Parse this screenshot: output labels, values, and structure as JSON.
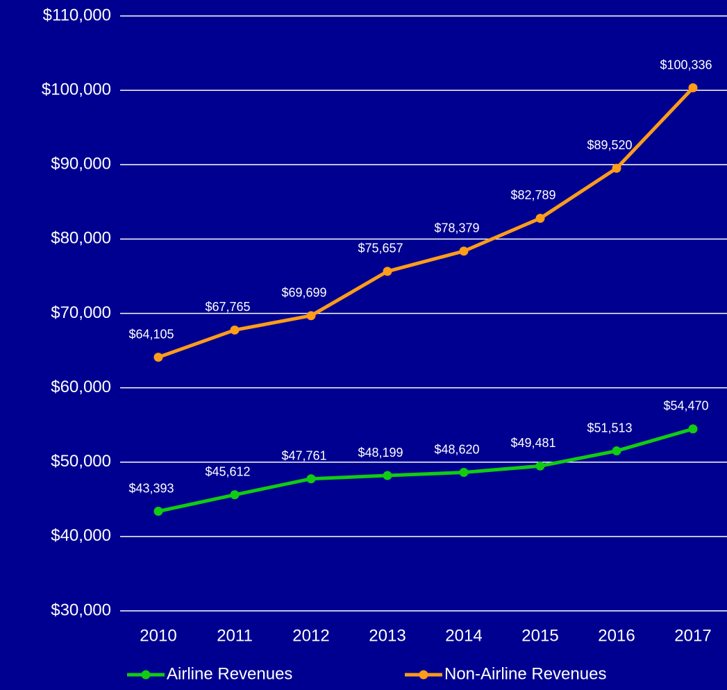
{
  "chart_data": {
    "type": "line",
    "categories": [
      "2010",
      "2011",
      "2012",
      "2013",
      "2014",
      "2015",
      "2016",
      "2017"
    ],
    "series": [
      {
        "name": "Airline Revenues",
        "color": "#11cc11",
        "values": [
          43393,
          45612,
          47761,
          48199,
          48620,
          49481,
          51513,
          54470
        ],
        "value_labels": [
          "$43,393",
          "$45,612",
          "$47,761",
          "$48,199",
          "$48,620",
          "$49,481",
          "$51,513",
          "$54,470"
        ]
      },
      {
        "name": "Non-Airline Revenues",
        "color": "#ff9c1a",
        "values": [
          64105,
          67765,
          69699,
          75657,
          78379,
          82789,
          89520,
          100336
        ],
        "value_labels": [
          "$64,105",
          "$67,765",
          "$69,699",
          "$75,657",
          "$78,379",
          "$82,789",
          "$89,520",
          "$100,336"
        ]
      }
    ],
    "ylim": [
      30000,
      110000
    ],
    "yticks": [
      {
        "value": 30000,
        "label": "$30,000"
      },
      {
        "value": 40000,
        "label": "$40,000"
      },
      {
        "value": 50000,
        "label": "$50,000"
      },
      {
        "value": 60000,
        "label": "$60,000"
      },
      {
        "value": 70000,
        "label": "$70,000"
      },
      {
        "value": 80000,
        "label": "$80,000"
      },
      {
        "value": 90000,
        "label": "$90,000"
      },
      {
        "value": 100000,
        "label": "$100,000"
      },
      {
        "value": 110000,
        "label": "$110,000"
      }
    ],
    "grid": true,
    "legend": "bottom"
  }
}
